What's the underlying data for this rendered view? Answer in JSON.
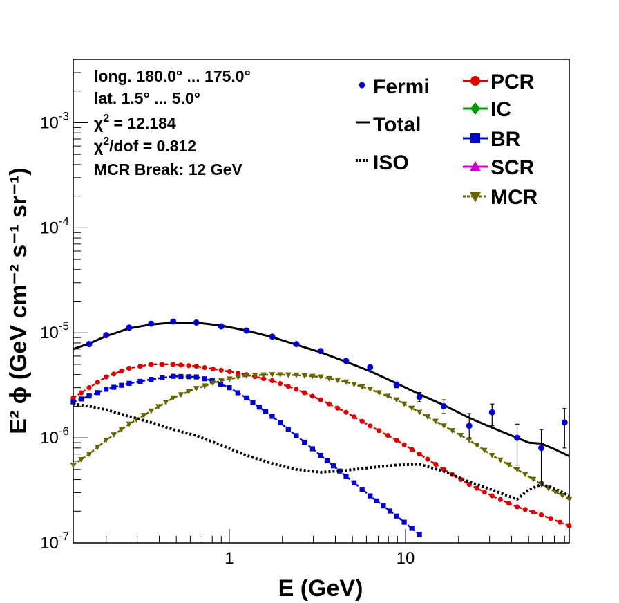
{
  "chart_data": {
    "type": "line",
    "xscale": "log",
    "yscale": "log",
    "xlim": [
      0.13,
      85
    ],
    "ylim": [
      1e-07,
      0.004
    ],
    "xlabel": "E (GeV)",
    "ylabel": "E² ϕ (GeV cm⁻² s⁻¹ sr⁻¹)",
    "x_ticks": [
      {
        "value": 1,
        "label": "1"
      },
      {
        "value": 10,
        "label": "10"
      }
    ],
    "y_ticks": [
      {
        "value": 1e-07,
        "base": "10",
        "exp": "-7"
      },
      {
        "value": 1e-06,
        "base": "10",
        "exp": "-6"
      },
      {
        "value": 1e-05,
        "base": "10",
        "exp": "-5"
      },
      {
        "value": 0.0001,
        "base": "10",
        "exp": "-4"
      },
      {
        "value": 0.001,
        "base": "10",
        "exp": "-3"
      }
    ],
    "info_lines": [
      {
        "text": "long. 180.0° ... 175.0°"
      },
      {
        "text": "lat. 1.5° ... 5.0°"
      },
      {
        "base": "χ",
        "sup": "2",
        "rest": " = 12.184"
      },
      {
        "base": "χ",
        "sup": "2",
        "rest": "/dof = 0.812"
      },
      {
        "text": "MCR Break: 12 GeV"
      }
    ],
    "legend_left": [
      {
        "key": "fermi",
        "label": "Fermi",
        "color": "#0000cc",
        "style": "point"
      },
      {
        "key": "total",
        "label": "Total",
        "color": "#000000",
        "style": "line"
      },
      {
        "key": "iso",
        "label": "ISO",
        "color": "#000000",
        "style": "dotted"
      }
    ],
    "legend_right": [
      {
        "key": "pcr",
        "label": "PCR",
        "color": "#dd0000",
        "marker": "circle"
      },
      {
        "key": "ic",
        "label": "IC",
        "color": "#009900",
        "marker": "diamond"
      },
      {
        "key": "br",
        "label": "BR",
        "color": "#0000cc",
        "marker": "square"
      },
      {
        "key": "scr",
        "label": "SCR",
        "color": "#cc00cc",
        "marker": "triangle-up"
      },
      {
        "key": "mcr",
        "label": "MCR",
        "color": "#666600",
        "marker": "triangle-down"
      }
    ],
    "fermi_points": [
      {
        "x": 0.16,
        "y": 7.8e-06,
        "err_lo": 0,
        "err_hi": 0
      },
      {
        "x": 0.2,
        "y": 9.5e-06,
        "err_lo": 0,
        "err_hi": 0
      },
      {
        "x": 0.27,
        "y": 1.12e-05,
        "err_lo": 0,
        "err_hi": 0
      },
      {
        "x": 0.36,
        "y": 1.22e-05,
        "err_lo": 0,
        "err_hi": 0
      },
      {
        "x": 0.48,
        "y": 1.28e-05,
        "err_lo": 0,
        "err_hi": 0
      },
      {
        "x": 0.65,
        "y": 1.25e-05,
        "err_lo": 0,
        "err_hi": 0
      },
      {
        "x": 0.9,
        "y": 1.15e-05,
        "err_lo": 0,
        "err_hi": 0
      },
      {
        "x": 1.25,
        "y": 1.05e-05,
        "err_lo": 0,
        "err_hi": 0
      },
      {
        "x": 1.75,
        "y": 9.2e-06,
        "err_lo": 0,
        "err_hi": 0
      },
      {
        "x": 2.4,
        "y": 7.8e-06,
        "err_lo": 0,
        "err_hi": 0
      },
      {
        "x": 3.3,
        "y": 6.7e-06,
        "err_lo": 0,
        "err_hi": 0
      },
      {
        "x": 4.6,
        "y": 5.4e-06,
        "err_lo": 0,
        "err_hi": 0
      },
      {
        "x": 6.3,
        "y": 4.7e-06,
        "err_lo": 0,
        "err_hi": 0
      },
      {
        "x": 8.9,
        "y": 3.2e-06,
        "err_lo": 3e-06,
        "err_hi": 3.4e-06
      },
      {
        "x": 12,
        "y": 2.45e-06,
        "err_lo": 2.2e-06,
        "err_hi": 2.7e-06
      },
      {
        "x": 16.5,
        "y": 2e-06,
        "err_lo": 1.7e-06,
        "err_hi": 2.3e-06
      },
      {
        "x": 23,
        "y": 1.3e-06,
        "err_lo": 1e-06,
        "err_hi": 1.7e-06
      },
      {
        "x": 31,
        "y": 1.75e-06,
        "err_lo": 1.3e-06,
        "err_hi": 2.1e-06
      },
      {
        "x": 43,
        "y": 1e-06,
        "err_lo": 5.5e-07,
        "err_hi": 1.35e-06
      },
      {
        "x": 59,
        "y": 8e-07,
        "err_lo": 3.8e-07,
        "err_hi": 1.2e-06
      },
      {
        "x": 80,
        "y": 1.4e-06,
        "err_lo": 8e-07,
        "err_hi": 1.9e-06
      }
    ],
    "series": [
      {
        "key": "total",
        "name": "Total",
        "color": "#000000",
        "style": "solid",
        "x": [
          0.13,
          0.16,
          0.2,
          0.27,
          0.36,
          0.48,
          0.65,
          0.9,
          1.25,
          1.75,
          2.4,
          3.3,
          4.6,
          6.3,
          8.9,
          12,
          16.5,
          23,
          31,
          43,
          50,
          59,
          70,
          85
        ],
        "y": [
          7e-06,
          7.9e-06,
          9.3e-06,
          1.1e-05,
          1.2e-05,
          1.25e-05,
          1.25e-05,
          1.17e-05,
          1.05e-05,
          9.1e-06,
          7.7e-06,
          6.5e-06,
          5.3e-06,
          4.3e-06,
          3.3e-06,
          2.6e-06,
          2.05e-06,
          1.55e-06,
          1.25e-06,
          1e-06,
          9e-07,
          8.8e-07,
          7.8e-07,
          6.7e-07
        ]
      },
      {
        "key": "pcr",
        "name": "PCR",
        "color": "#dd0000",
        "style": "marker",
        "x": [
          0.13,
          0.16,
          0.2,
          0.27,
          0.36,
          0.48,
          0.65,
          0.9,
          1.25,
          1.75,
          2.4,
          3.3,
          4.6,
          6.3,
          8.9,
          12,
          16.5,
          23,
          31,
          43,
          59,
          85
        ],
        "y": [
          2.4e-06,
          3e-06,
          3.8e-06,
          4.6e-06,
          5e-06,
          5e-06,
          4.8e-06,
          4.4e-06,
          4e-06,
          3.5e-06,
          2.9e-06,
          2.3e-06,
          1.75e-06,
          1.3e-06,
          9.5e-07,
          7e-07,
          5e-07,
          3.6e-07,
          2.8e-07,
          2.2e-07,
          1.85e-07,
          1.45e-07
        ]
      },
      {
        "key": "br",
        "name": "BR",
        "color": "#0000cc",
        "style": "marker",
        "x": [
          0.13,
          0.16,
          0.2,
          0.27,
          0.36,
          0.48,
          0.65,
          0.8,
          1.0,
          1.25,
          1.75,
          2.4,
          3.3,
          4.6,
          6.3,
          8.9,
          12,
          16.5
        ],
        "y": [
          2.2e-06,
          2.5e-06,
          2.9e-06,
          3.3e-06,
          3.6e-06,
          3.85e-06,
          3.8e-06,
          3.5e-06,
          3e-06,
          2.4e-06,
          1.6e-06,
          1.05e-06,
          6.8e-07,
          4.3e-07,
          2.8e-07,
          1.8e-07,
          1.2e-07,
          8e-08
        ]
      },
      {
        "key": "mcr",
        "name": "MCR",
        "color": "#666600",
        "style": "marker",
        "x": [
          0.13,
          0.16,
          0.2,
          0.27,
          0.36,
          0.48,
          0.65,
          0.9,
          1.25,
          1.75,
          2.4,
          3.3,
          4.6,
          6.3,
          8.9,
          12,
          16.5,
          23,
          31,
          43,
          59,
          85
        ],
        "y": [
          5.5e-07,
          7e-07,
          9.5e-07,
          1.35e-06,
          1.8e-06,
          2.4e-06,
          2.95e-06,
          3.5e-06,
          3.9e-06,
          4e-06,
          3.95e-06,
          3.8e-06,
          3.4e-06,
          2.9e-06,
          2.3e-06,
          1.75e-06,
          1.3e-06,
          9.5e-07,
          6.8e-07,
          5e-07,
          3.6e-07,
          2.6e-07
        ]
      },
      {
        "key": "iso",
        "name": "ISO",
        "color": "#000000",
        "style": "dotted",
        "x": [
          0.13,
          0.16,
          0.2,
          0.27,
          0.36,
          0.48,
          0.65,
          0.9,
          1.25,
          1.75,
          2.4,
          3.3,
          4.6,
          6.3,
          8.9,
          12,
          16.5,
          23,
          31,
          43,
          50,
          59,
          70,
          85
        ],
        "y": [
          2.1e-06,
          2e-06,
          1.85e-06,
          1.6e-06,
          1.4e-06,
          1.2e-06,
          1.05e-06,
          8.5e-07,
          6.8e-07,
          5.7e-07,
          5e-07,
          4.7e-07,
          4.9e-07,
          5.2e-07,
          5.5e-07,
          5.6e-07,
          4.8e-07,
          3.8e-07,
          3.2e-07,
          2.6e-07,
          3.2e-07,
          3.6e-07,
          3.3e-07,
          2.8e-07
        ]
      }
    ]
  }
}
